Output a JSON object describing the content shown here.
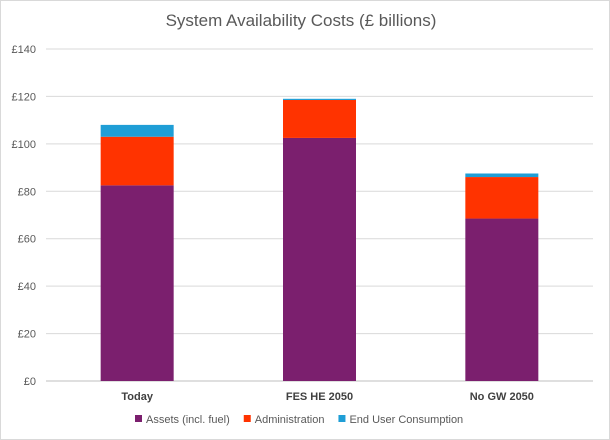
{
  "chart_data": {
    "type": "bar",
    "stacked": true,
    "title": "System Availability Costs (£ billions)",
    "xlabel": "",
    "ylabel": "",
    "categories": [
      "Today",
      "FES HE 2050",
      "No GW 2050"
    ],
    "series": [
      {
        "name": "Assets (incl. fuel)",
        "color": "#7b1f6e",
        "values": [
          82.5,
          102.5,
          68.5
        ]
      },
      {
        "name": "Administration",
        "color": "#ff3300",
        "values": [
          20.5,
          16,
          17.5
        ]
      },
      {
        "name": "End User Consumption",
        "color": "#1f9ed6",
        "values": [
          5,
          0.5,
          1.5
        ]
      }
    ],
    "ylim": [
      0,
      140
    ],
    "yticks": [
      0,
      20,
      40,
      60,
      80,
      100,
      120,
      140
    ],
    "ytick_labels": [
      "£0",
      "£20",
      "£40",
      "£60",
      "£80",
      "£100",
      "£120",
      "£140"
    ],
    "grid": true,
    "legend_position": "bottom"
  }
}
